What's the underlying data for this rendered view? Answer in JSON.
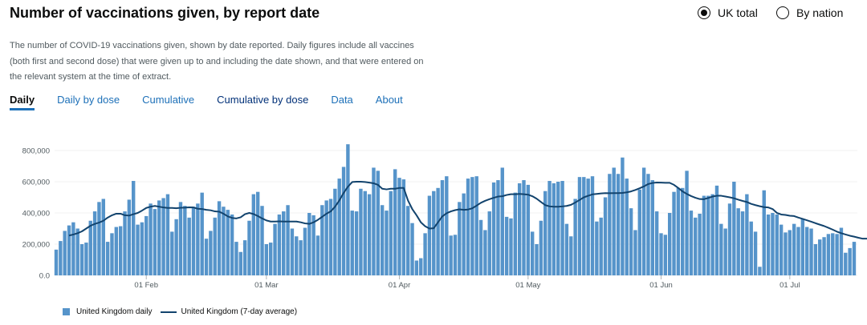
{
  "title": "Number of vaccinations given, by report date",
  "radios": [
    {
      "label": "UK total",
      "selected": true
    },
    {
      "label": "By nation",
      "selected": false
    }
  ],
  "description": "The number of COVID-19 vaccinations given, shown by date reported. Daily figures include all vaccines (both first and second dose) that were given up to and including the date shown, and that were entered on the relevant system at the time of extract.",
  "tabs": [
    "Daily",
    "Daily by dose",
    "Cumulative",
    "Cumulative by dose",
    "Data",
    "About"
  ],
  "legend": {
    "bars": "United Kingdom daily",
    "line": "United Kingdom (7-day average)"
  },
  "colors": {
    "bar": "#5694ca",
    "line": "#12436d",
    "link": "#1d70b8"
  },
  "chart_data": {
    "type": "bar",
    "start_date": "2021-01-11",
    "x_ticks": [
      {
        "label": "01 Feb",
        "day": 21
      },
      {
        "label": "01 Mar",
        "day": 49
      },
      {
        "label": "01 Apr",
        "day": 80
      },
      {
        "label": "01 May",
        "day": 110
      },
      {
        "label": "01 Jun",
        "day": 141
      },
      {
        "label": "01 Jul",
        "day": 171
      }
    ],
    "y_ticks": [
      "800,000",
      "600,000",
      "400,000",
      "200,000",
      "0.0"
    ],
    "y_tick_values": [
      800000,
      600000,
      400000,
      200000,
      0
    ],
    "ylim": [
      0,
      800000
    ],
    "series": [
      {
        "name": "United Kingdom daily",
        "kind": "bar",
        "values": [
          165000,
          220000,
          285000,
          320000,
          340000,
          300000,
          200000,
          210000,
          350000,
          410000,
          470000,
          490000,
          215000,
          270000,
          310000,
          315000,
          410000,
          485000,
          605000,
          325000,
          340000,
          380000,
          460000,
          425000,
          480000,
          495000,
          520000,
          280000,
          360000,
          470000,
          445000,
          370000,
          440000,
          460000,
          530000,
          235000,
          285000,
          370000,
          475000,
          440000,
          420000,
          390000,
          215000,
          150000,
          225000,
          350000,
          520000,
          535000,
          445000,
          200000,
          210000,
          330000,
          390000,
          410000,
          450000,
          300000,
          250000,
          225000,
          305000,
          400000,
          385000,
          255000,
          450000,
          480000,
          490000,
          555000,
          620000,
          695000,
          840000,
          415000,
          410000,
          555000,
          540000,
          520000,
          690000,
          670000,
          450000,
          415000,
          540000,
          680000,
          625000,
          615000,
          445000,
          335000,
          95000,
          110000,
          270000,
          510000,
          540000,
          560000,
          610000,
          635000,
          255000,
          260000,
          470000,
          525000,
          620000,
          630000,
          635000,
          355000,
          290000,
          410000,
          595000,
          610000,
          690000,
          375000,
          365000,
          530000,
          590000,
          610000,
          580000,
          280000,
          200000,
          350000,
          540000,
          605000,
          590000,
          600000,
          605000,
          330000,
          250000,
          490000,
          630000,
          630000,
          620000,
          635000,
          345000,
          370000,
          500000,
          650000,
          690000,
          650000,
          755000,
          620000,
          430000,
          290000,
          550000,
          690000,
          650000,
          610000,
          410000,
          270000,
          260000,
          400000,
          535000,
          560000,
          560000,
          670000,
          415000,
          370000,
          395000,
          510000,
          510000,
          520000,
          575000,
          330000,
          300000,
          460000,
          600000,
          430000,
          410000,
          520000,
          345000,
          280000,
          55000,
          545000,
          390000,
          400000,
          390000,
          325000,
          275000,
          290000,
          330000,
          310000,
          360000,
          310000,
          300000,
          200000,
          230000,
          245000,
          265000,
          270000,
          265000,
          305000,
          145000,
          175000,
          215000
        ]
      },
      {
        "name": "United Kingdom (7-day average)",
        "kind": "line",
        "values": [
          255000,
          262000,
          270000,
          282000,
          300000,
          318000,
          330000,
          338000,
          350000,
          370000,
          385000,
          395000,
          395000,
          385000,
          383000,
          392000,
          400000,
          415000,
          432000,
          440000,
          445000,
          440000,
          435000,
          432000,
          432000,
          430000,
          433000,
          434000,
          436000,
          435000,
          427000,
          425000,
          420000,
          417000,
          410000,
          408000,
          395000,
          378000,
          368000,
          365000,
          372000,
          392000,
          400000,
          393000,
          380000,
          365000,
          352000,
          345000,
          345000,
          346000,
          345000,
          345000,
          345000,
          345000,
          340000,
          333000,
          330000,
          340000,
          356000,
          375000,
          395000,
          410000,
          440000,
          480000,
          528000,
          568000,
          598000,
          600000,
          600000,
          598000,
          594000,
          590000,
          580000,
          555000,
          551000,
          555000,
          555000,
          560000,
          560000,
          480000,
          425000,
          385000,
          340000,
          315000,
          300000,
          302000,
          340000,
          378000,
          398000,
          410000,
          418000,
          423000,
          420000,
          422000,
          430000,
          447000,
          465000,
          478000,
          488000,
          497000,
          505000,
          507000,
          515000,
          520000,
          520000,
          522000,
          520000,
          517000,
          507000,
          491000,
          470000,
          450000,
          442000,
          440000,
          440000,
          442000,
          445000,
          452000,
          467000,
          483000,
          500000,
          510000,
          519000,
          522000,
          525000,
          527000,
          526000,
          527000,
          527000,
          528000,
          532000,
          538000,
          547000,
          558000,
          570000,
          585000,
          592000,
          595000,
          594000,
          593000,
          593000,
          580000,
          560000,
          538000,
          522000,
          508000,
          497000,
          489000,
          488000,
          496000,
          505000,
          510000,
          510000,
          505000,
          500000,
          494000,
          485000,
          477000,
          470000,
          458000,
          450000,
          443000,
          437000,
          435000,
          425000,
          400000,
          390000,
          387000,
          382000,
          380000,
          370000,
          362000,
          353000,
          344000,
          334000,
          325000,
          316000,
          305000,
          293000,
          280000,
          270000,
          262000,
          254000,
          248000,
          241000,
          235000,
          235000,
          235000
        ]
      }
    ]
  }
}
